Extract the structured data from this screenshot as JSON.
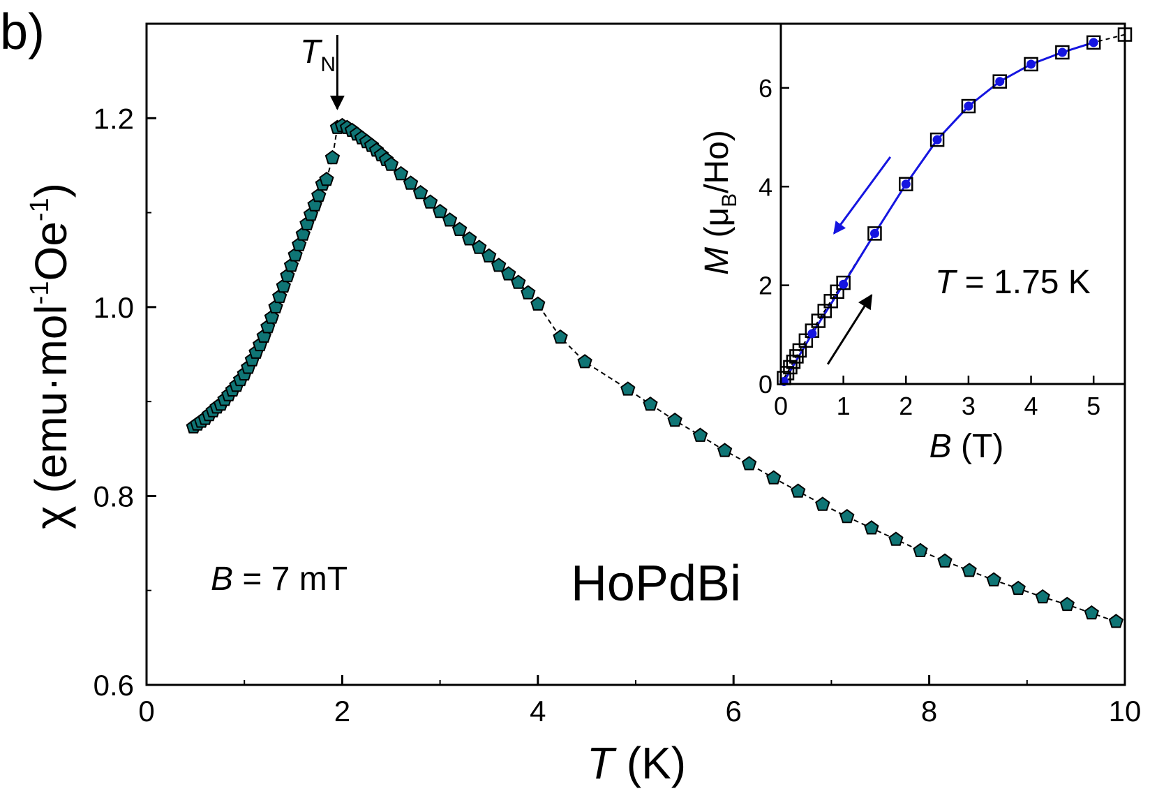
{
  "panel_label": "b)",
  "chart_data": [
    {
      "id": "main",
      "type": "scatter",
      "title": "HoPdBi",
      "xlabel": {
        "var": "T",
        "unit": "(K)"
      },
      "ylabel": {
        "prefix": "χ (emu·mol",
        "sup1": "-1",
        "mid": "Oe",
        "sup2": "-1",
        "suffix": ")"
      },
      "xlim": [
        0,
        10
      ],
      "ylim": [
        0.6,
        1.3
      ],
      "xticks": [
        0,
        2,
        4,
        6,
        8,
        10
      ],
      "yticks": [
        0.6,
        0.8,
        1.0,
        1.2
      ],
      "xtick_labels": [
        "0",
        "2",
        "4",
        "6",
        "8",
        "10"
      ],
      "ytick_labels": [
        "0.6",
        "0.8",
        "1.0",
        "1.2"
      ],
      "marker": "pentagon",
      "marker_color": "#0f7575",
      "line_style": "dashed",
      "annotations": {
        "field": {
          "var": "B",
          "text": " = 7 mT"
        },
        "transition": {
          "var": "T",
          "sub": "N",
          "at_x": 1.95,
          "at_y": 1.21
        }
      },
      "series": [
        {
          "name": "chi(T)",
          "x": [
            0.48,
            0.52,
            0.56,
            0.6,
            0.64,
            0.68,
            0.72,
            0.76,
            0.8,
            0.84,
            0.88,
            0.92,
            0.96,
            1.0,
            1.04,
            1.08,
            1.12,
            1.16,
            1.2,
            1.24,
            1.28,
            1.32,
            1.36,
            1.4,
            1.44,
            1.48,
            1.52,
            1.56,
            1.6,
            1.64,
            1.68,
            1.72,
            1.76,
            1.8,
            1.84,
            1.9,
            1.95,
            2.0,
            2.05,
            2.1,
            2.15,
            2.2,
            2.25,
            2.3,
            2.35,
            2.4,
            2.45,
            2.5,
            2.6,
            2.7,
            2.8,
            2.9,
            3.0,
            3.1,
            3.2,
            3.3,
            3.4,
            3.5,
            3.6,
            3.7,
            3.8,
            3.9,
            4.0,
            4.23,
            4.48,
            4.92,
            5.15,
            5.4,
            5.66,
            5.91,
            6.16,
            6.41,
            6.66,
            6.91,
            7.16,
            7.41,
            7.66,
            7.91,
            8.16,
            8.41,
            8.66,
            8.91,
            9.16,
            9.41,
            9.66,
            9.91
          ],
          "y": [
            0.873,
            0.876,
            0.879,
            0.882,
            0.886,
            0.89,
            0.894,
            0.897,
            0.902,
            0.907,
            0.912,
            0.917,
            0.923,
            0.929,
            0.936,
            0.944,
            0.952,
            0.96,
            0.969,
            0.979,
            0.989,
            1.0,
            1.011,
            1.022,
            1.033,
            1.044,
            1.055,
            1.066,
            1.077,
            1.088,
            1.098,
            1.108,
            1.118,
            1.13,
            1.135,
            1.158,
            1.19,
            1.192,
            1.19,
            1.187,
            1.183,
            1.179,
            1.175,
            1.171,
            1.166,
            1.161,
            1.156,
            1.151,
            1.141,
            1.131,
            1.121,
            1.111,
            1.101,
            1.092,
            1.082,
            1.072,
            1.063,
            1.054,
            1.044,
            1.035,
            1.026,
            1.015,
            1.003,
            0.968,
            0.942,
            0.913,
            0.897,
            0.88,
            0.864,
            0.848,
            0.834,
            0.819,
            0.805,
            0.791,
            0.778,
            0.766,
            0.754,
            0.742,
            0.731,
            0.721,
            0.711,
            0.702,
            0.693,
            0.685,
            0.676,
            0.667
          ]
        }
      ]
    },
    {
      "id": "inset",
      "type": "scatter",
      "xlabel": {
        "var": "B",
        "unit": "(T)"
      },
      "ylabel": {
        "var": "M",
        "pre": " (μ",
        "sub": "B",
        "post": "/Ho)"
      },
      "xlim": [
        0,
        5.5
      ],
      "ylim": [
        0,
        7.3
      ],
      "xticks": [
        0,
        1,
        2,
        3,
        4,
        5
      ],
      "yticks": [
        0,
        2,
        4,
        6
      ],
      "xtick_labels": [
        "0",
        "1",
        "2",
        "3",
        "4",
        "5"
      ],
      "ytick_labels": [
        "0",
        "2",
        "4",
        "6"
      ],
      "annotations": {
        "temperature": {
          "var": "T",
          "text": " = 1.75 K"
        },
        "arrows": [
          {
            "name": "field-down-arrow",
            "color": "#1515e0",
            "from": [
              1.75,
              4.6
            ],
            "to": [
              0.85,
              3.05
            ]
          },
          {
            "name": "field-up-arrow",
            "color": "#000000",
            "from": [
              0.75,
              0.4
            ],
            "to": [
              1.45,
              1.8
            ]
          }
        ]
      },
      "series": [
        {
          "name": "increasing field",
          "marker": "open-square",
          "color": "#000000",
          "line_style": "dashed",
          "x": [
            0.05,
            0.1,
            0.15,
            0.2,
            0.25,
            0.3,
            0.4,
            0.5,
            0.6,
            0.7,
            0.8,
            0.9,
            1.0,
            1.5,
            2.0,
            2.5,
            3.0,
            3.5,
            4.0,
            4.5,
            5.0,
            5.5
          ],
          "y": [
            0.12,
            0.22,
            0.34,
            0.45,
            0.56,
            0.68,
            0.88,
            1.08,
            1.28,
            1.48,
            1.68,
            1.87,
            2.05,
            3.05,
            4.05,
            4.95,
            5.63,
            6.13,
            6.48,
            6.72,
            6.92,
            7.08
          ]
        },
        {
          "name": "decreasing field",
          "marker": "filled-circle",
          "color": "#1515e0",
          "line_style": "solid",
          "x": [
            0.05,
            0.5,
            1.0,
            1.5,
            2.0,
            2.5,
            3.0,
            3.5,
            4.0,
            4.5,
            5.0
          ],
          "y": [
            0.05,
            1.02,
            2.02,
            3.05,
            4.05,
            4.95,
            5.63,
            6.13,
            6.48,
            6.72,
            6.92
          ]
        }
      ]
    }
  ]
}
